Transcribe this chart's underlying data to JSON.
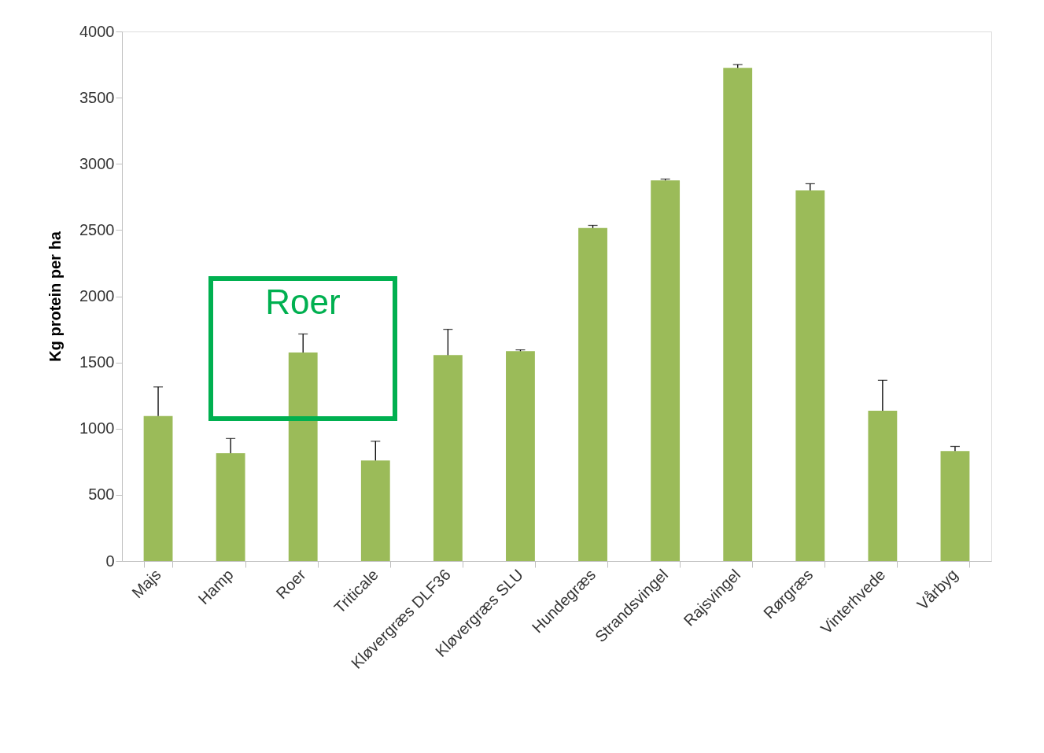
{
  "chart_data": {
    "type": "bar",
    "ylabel": "Kg protein per ha",
    "categories": [
      "Majs",
      "Hamp",
      "Roer",
      "Triticale",
      "Kløvergræs DLF36",
      "Kløvergræs SLU",
      "Hundegræs",
      "Strandsvingel",
      "Rajsvingel",
      "Rørgræs",
      "Vinterhvede",
      "Vårbyg"
    ],
    "series": [
      {
        "color": "#9bbb59",
        "values": [
          1095,
          815,
          1575,
          760,
          1555,
          1585,
          2515,
          2875,
          3725,
          2800,
          1135,
          830
        ],
        "errors": [
          [
            1095,
            1315
          ],
          [
            815,
            925
          ],
          [
            1575,
            1715
          ],
          [
            760,
            905
          ],
          [
            1555,
            1750
          ],
          [
            1585,
            1595
          ],
          [
            2515,
            2535
          ],
          [
            2875,
            2885
          ],
          [
            3725,
            3750
          ],
          [
            2800,
            2850
          ],
          [
            1135,
            1365
          ],
          [
            830,
            865
          ]
        ]
      }
    ],
    "ylim": [
      0,
      4000
    ],
    "yticks": [
      0,
      500,
      1000,
      1500,
      2000,
      2500,
      3000,
      3500,
      4000
    ],
    "grid": false,
    "annotations": [
      "Roer"
    ]
  }
}
